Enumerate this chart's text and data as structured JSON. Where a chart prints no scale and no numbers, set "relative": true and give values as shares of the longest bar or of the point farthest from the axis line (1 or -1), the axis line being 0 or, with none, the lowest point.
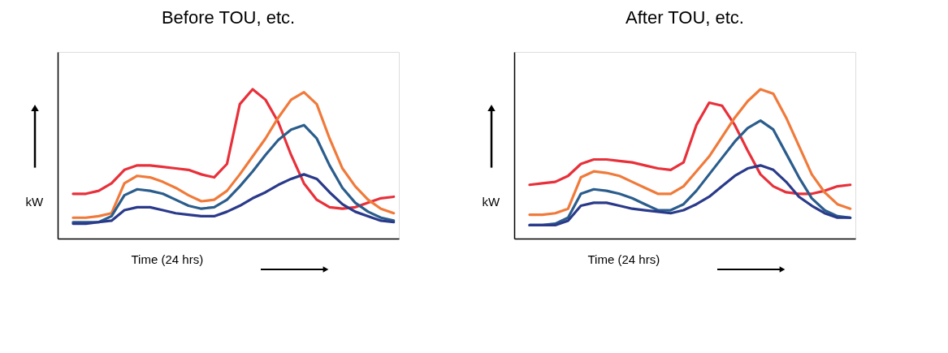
{
  "chart_data": [
    {
      "type": "line",
      "title": "Before TOU, etc.",
      "xlabel": "Time  (24 hrs)",
      "ylabel": "kW",
      "relative": true,
      "legend": false,
      "grid": false,
      "marker": "none",
      "line_style": "solid",
      "categories": [
        null,
        null,
        null,
        null,
        null,
        null,
        null,
        null,
        null,
        null,
        null,
        null,
        null,
        null,
        null,
        null,
        null,
        null,
        null,
        null,
        null,
        null,
        null,
        null,
        null,
        null
      ],
      "series": [
        {
          "color": "#e8303a",
          "values": [
            0.3,
            0.3,
            0.32,
            0.37,
            0.46,
            0.49,
            0.49,
            0.48,
            0.47,
            0.46,
            0.43,
            0.41,
            0.5,
            0.9,
            1.0,
            0.93,
            0.78,
            0.56,
            0.37,
            0.26,
            0.21,
            0.2,
            0.21,
            0.24,
            0.27,
            0.28
          ]
        },
        {
          "color": "#f07a3a",
          "values": [
            0.14,
            0.14,
            0.15,
            0.17,
            0.37,
            0.42,
            0.41,
            0.38,
            0.34,
            0.29,
            0.25,
            0.26,
            0.32,
            0.43,
            0.55,
            0.67,
            0.81,
            0.93,
            0.98,
            0.9,
            0.67,
            0.47,
            0.35,
            0.26,
            0.2,
            0.17
          ]
        },
        {
          "color": "#2b5d8c",
          "values": [
            0.11,
            0.11,
            0.11,
            0.15,
            0.29,
            0.33,
            0.32,
            0.3,
            0.26,
            0.22,
            0.2,
            0.21,
            0.26,
            0.35,
            0.45,
            0.56,
            0.66,
            0.73,
            0.76,
            0.67,
            0.49,
            0.34,
            0.24,
            0.18,
            0.14,
            0.12
          ]
        },
        {
          "color": "#2a3a8a",
          "values": [
            0.1,
            0.1,
            0.11,
            0.12,
            0.19,
            0.21,
            0.21,
            0.19,
            0.17,
            0.16,
            0.15,
            0.15,
            0.18,
            0.22,
            0.27,
            0.31,
            0.36,
            0.4,
            0.43,
            0.4,
            0.31,
            0.23,
            0.18,
            0.15,
            0.12,
            0.11
          ]
        }
      ]
    },
    {
      "type": "line",
      "title": "After TOU, etc.",
      "xlabel": "Time  (24 hrs)",
      "ylabel": "kW",
      "relative": true,
      "legend": false,
      "grid": false,
      "marker": "none",
      "line_style": "solid",
      "categories": [
        null,
        null,
        null,
        null,
        null,
        null,
        null,
        null,
        null,
        null,
        null,
        null,
        null,
        null,
        null,
        null,
        null,
        null,
        null,
        null,
        null,
        null,
        null,
        null,
        null,
        null
      ],
      "series": [
        {
          "color": "#e8303a",
          "values": [
            0.36,
            0.37,
            0.38,
            0.42,
            0.5,
            0.53,
            0.53,
            0.52,
            0.51,
            0.49,
            0.47,
            0.46,
            0.51,
            0.76,
            0.91,
            0.89,
            0.76,
            0.59,
            0.43,
            0.35,
            0.31,
            0.3,
            0.3,
            0.32,
            0.35,
            0.36
          ]
        },
        {
          "color": "#f07a3a",
          "values": [
            0.16,
            0.16,
            0.17,
            0.2,
            0.41,
            0.45,
            0.44,
            0.42,
            0.38,
            0.34,
            0.3,
            0.3,
            0.35,
            0.45,
            0.55,
            0.68,
            0.81,
            0.92,
            1.0,
            0.97,
            0.81,
            0.62,
            0.43,
            0.31,
            0.23,
            0.2
          ]
        },
        {
          "color": "#2b5d8c",
          "values": [
            0.09,
            0.09,
            0.1,
            0.14,
            0.3,
            0.33,
            0.32,
            0.3,
            0.27,
            0.23,
            0.19,
            0.19,
            0.23,
            0.32,
            0.43,
            0.54,
            0.65,
            0.74,
            0.79,
            0.73,
            0.57,
            0.41,
            0.27,
            0.19,
            0.15,
            0.14
          ]
        },
        {
          "color": "#2a3a8a",
          "values": [
            0.09,
            0.09,
            0.09,
            0.12,
            0.22,
            0.24,
            0.24,
            0.22,
            0.2,
            0.19,
            0.18,
            0.17,
            0.19,
            0.23,
            0.28,
            0.35,
            0.42,
            0.47,
            0.49,
            0.46,
            0.38,
            0.28,
            0.22,
            0.17,
            0.14,
            0.14
          ]
        }
      ]
    }
  ]
}
